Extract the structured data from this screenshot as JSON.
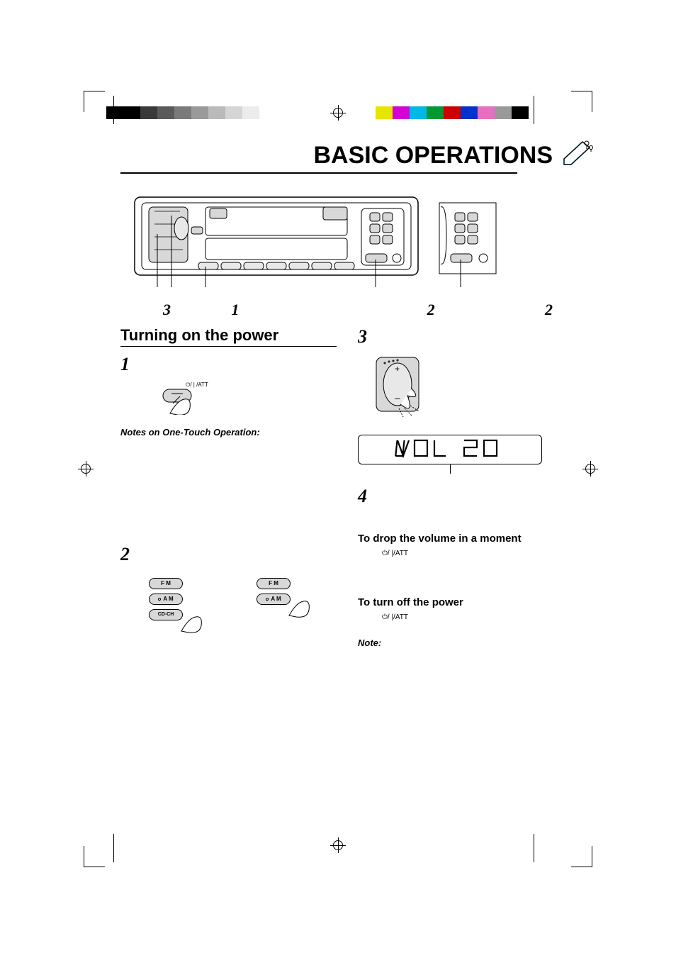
{
  "header": {
    "title": "BASIC OPERATIONS"
  },
  "device": {
    "callouts": [
      "3",
      "1",
      "2",
      "2"
    ]
  },
  "left_col": {
    "section_title": "Turning on the power",
    "step1": "1",
    "att_label": "/ATT",
    "notes_heading": "Notes on One-Touch Operation:",
    "step2": "2",
    "buttons_left": [
      "F M",
      "A M",
      "CD-CH"
    ],
    "buttons_right": [
      "F M",
      "A M"
    ]
  },
  "right_col": {
    "step3": "3",
    "vol_text": "VOL  20",
    "step4": "4",
    "drop_heading": "To drop the volume in a moment",
    "drop_att": "/ATT",
    "off_heading": "To turn off the power",
    "off_att": "/ATT",
    "note_label": "Note:"
  },
  "colorbars": {
    "left_grays": [
      "#000000",
      "#000000",
      "#3a3a3a",
      "#5a5a5a",
      "#7a7a7a",
      "#9a9a9a",
      "#bababa",
      "#d5d5d5",
      "#ececec",
      "#ffffff"
    ],
    "right_colors": [
      "#e6e600",
      "#d400d4",
      "#00b8e6",
      "#009933",
      "#cc0000",
      "#0033cc",
      "#e66fc0",
      "#999999",
      "#000000"
    ]
  }
}
